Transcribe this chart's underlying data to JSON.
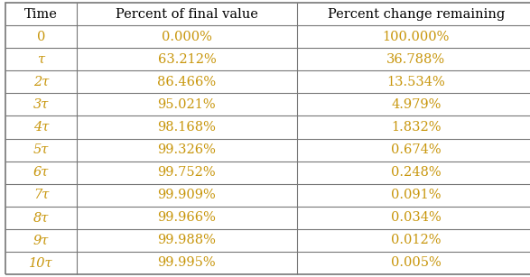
{
  "col_headers": [
    "Time",
    "Percent of final value",
    "Percent change remaining"
  ],
  "time_labels": [
    "0",
    "τ",
    "2τ",
    "3τ",
    "4τ",
    "5τ",
    "6τ",
    "7τ",
    "8τ",
    "9τ",
    "10τ"
  ],
  "col2_values": [
    "0.000%",
    "63.212%",
    "86.466%",
    "95.021%",
    "98.168%",
    "99.326%",
    "99.752%",
    "99.909%",
    "99.966%",
    "99.988%",
    "99.995%"
  ],
  "col3_values": [
    "100.000%",
    "36.788%",
    "13.534%",
    "4.979%",
    "1.832%",
    "0.674%",
    "0.248%",
    "0.091%",
    "0.034%",
    "0.012%",
    "0.005%"
  ],
  "header_color": "#000000",
  "data_color": "#c8960c",
  "background_color": "#ffffff",
  "border_color": "#777777",
  "header_fontsize": 10.5,
  "data_fontsize": 10.5,
  "figsize": [
    5.87,
    3.07
  ],
  "dpi": 100
}
